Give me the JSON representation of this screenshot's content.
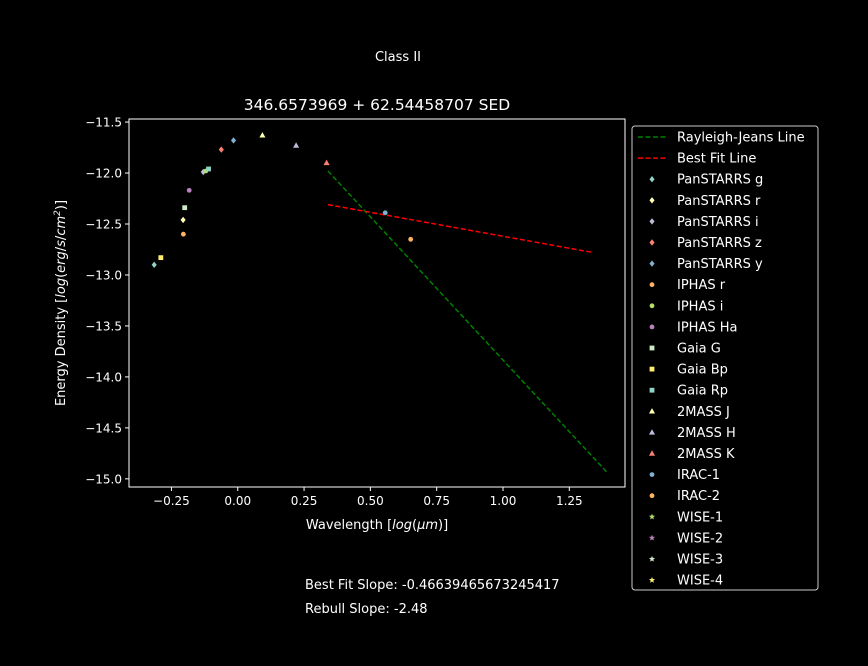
{
  "figure": {
    "suptitle": "Class II",
    "footer": {
      "best_fit_slope": "Best Fit Slope: -0.46639465673245417",
      "rebull_slope": "Rebull Slope: -2.48"
    }
  },
  "chart_data": {
    "type": "scatter",
    "title": "346.6573969 + 62.54458707 SED",
    "xlabel": "Wavelength [log(μm)]",
    "ylabel": "Energy Density [log(erg/s/cm²)]",
    "xlim": [
      -0.41,
      1.46
    ],
    "ylim": [
      -15.08,
      -11.47
    ],
    "xticks": [
      -0.25,
      0.0,
      0.25,
      0.5,
      0.75,
      1.0,
      1.25
    ],
    "xtick_labels": [
      "−0.25",
      "0.00",
      "0.25",
      "0.50",
      "0.75",
      "1.00",
      "1.25"
    ],
    "yticks": [
      -11.5,
      -12.0,
      -12.5,
      -13.0,
      -13.5,
      -14.0,
      -14.5,
      -15.0
    ],
    "ytick_labels": [
      "−11.5",
      "−12.0",
      "−12.5",
      "−13.0",
      "−13.5",
      "−14.0",
      "−14.5",
      "−15.0"
    ],
    "grid": false,
    "legend_position": "outside-right",
    "lines": [
      {
        "name": "Rayleigh-Jeans Line",
        "color": "#008000",
        "style": "dashed",
        "x": [
          0.34,
          1.39
        ],
        "y": [
          -11.98,
          -14.93
        ]
      },
      {
        "name": "Best Fit Line",
        "color": "#ff0000",
        "style": "dashed",
        "x": [
          0.34,
          1.34
        ],
        "y": [
          -12.31,
          -12.78
        ]
      }
    ],
    "series": [
      {
        "name": "PanSTARRS g",
        "color": "#8dd3c7",
        "marker": "diamond",
        "x": [
          -0.315
        ],
        "y": [
          -12.9
        ]
      },
      {
        "name": "PanSTARRS r",
        "color": "#ffffb3",
        "marker": "diamond",
        "x": [
          -0.206
        ],
        "y": [
          -12.46
        ]
      },
      {
        "name": "PanSTARRS i",
        "color": "#bebada",
        "marker": "diamond",
        "x": [
          -0.13
        ],
        "y": [
          -11.99
        ]
      },
      {
        "name": "PanSTARRS z",
        "color": "#fb8072",
        "marker": "diamond",
        "x": [
          -0.062
        ],
        "y": [
          -11.77
        ]
      },
      {
        "name": "PanSTARRS y",
        "color": "#80b1d3",
        "marker": "diamond",
        "x": [
          -0.016
        ],
        "y": [
          -11.68
        ]
      },
      {
        "name": "IPHAS r",
        "color": "#fdb462",
        "marker": "circle",
        "x": [
          -0.205
        ],
        "y": [
          -12.6
        ]
      },
      {
        "name": "IPHAS i",
        "color": "#b3de69",
        "marker": "circle",
        "x": [
          -0.12
        ],
        "y": [
          -11.98
        ]
      },
      {
        "name": "IPHAS Ha",
        "color": "#bc80bd",
        "marker": "circle",
        "x": [
          -0.183
        ],
        "y": [
          -12.17
        ]
      },
      {
        "name": "Gaia G",
        "color": "#ccebc5",
        "marker": "square",
        "x": [
          -0.2
        ],
        "y": [
          -12.34
        ]
      },
      {
        "name": "Gaia Bp",
        "color": "#ffed6f",
        "marker": "square",
        "x": [
          -0.29
        ],
        "y": [
          -12.83
        ]
      },
      {
        "name": "Gaia Rp",
        "color": "#8dd3c7",
        "marker": "square",
        "x": [
          -0.11
        ],
        "y": [
          -11.96
        ]
      },
      {
        "name": "2MASS J",
        "color": "#ffffb3",
        "marker": "triangle",
        "x": [
          0.093
        ],
        "y": [
          -11.63
        ]
      },
      {
        "name": "2MASS H",
        "color": "#bebada",
        "marker": "triangle",
        "x": [
          0.22
        ],
        "y": [
          -11.73
        ]
      },
      {
        "name": "2MASS K",
        "color": "#fb8072",
        "marker": "triangle",
        "x": [
          0.335
        ],
        "y": [
          -11.9
        ]
      },
      {
        "name": "IRAC-1",
        "color": "#80b1d3",
        "marker": "circle",
        "x": [
          0.556
        ],
        "y": [
          -12.39
        ]
      },
      {
        "name": "IRAC-2",
        "color": "#fdb462",
        "marker": "circle",
        "x": [
          0.652
        ],
        "y": [
          -12.65
        ]
      },
      {
        "name": "WISE-1",
        "color": "#b3de69",
        "marker": "star",
        "x": [],
        "y": []
      },
      {
        "name": "WISE-2",
        "color": "#bc80bd",
        "marker": "star",
        "x": [],
        "y": []
      },
      {
        "name": "WISE-3",
        "color": "#ccebc5",
        "marker": "star",
        "x": [],
        "y": []
      },
      {
        "name": "WISE-4",
        "color": "#ffed6f",
        "marker": "star",
        "x": [],
        "y": []
      }
    ]
  }
}
